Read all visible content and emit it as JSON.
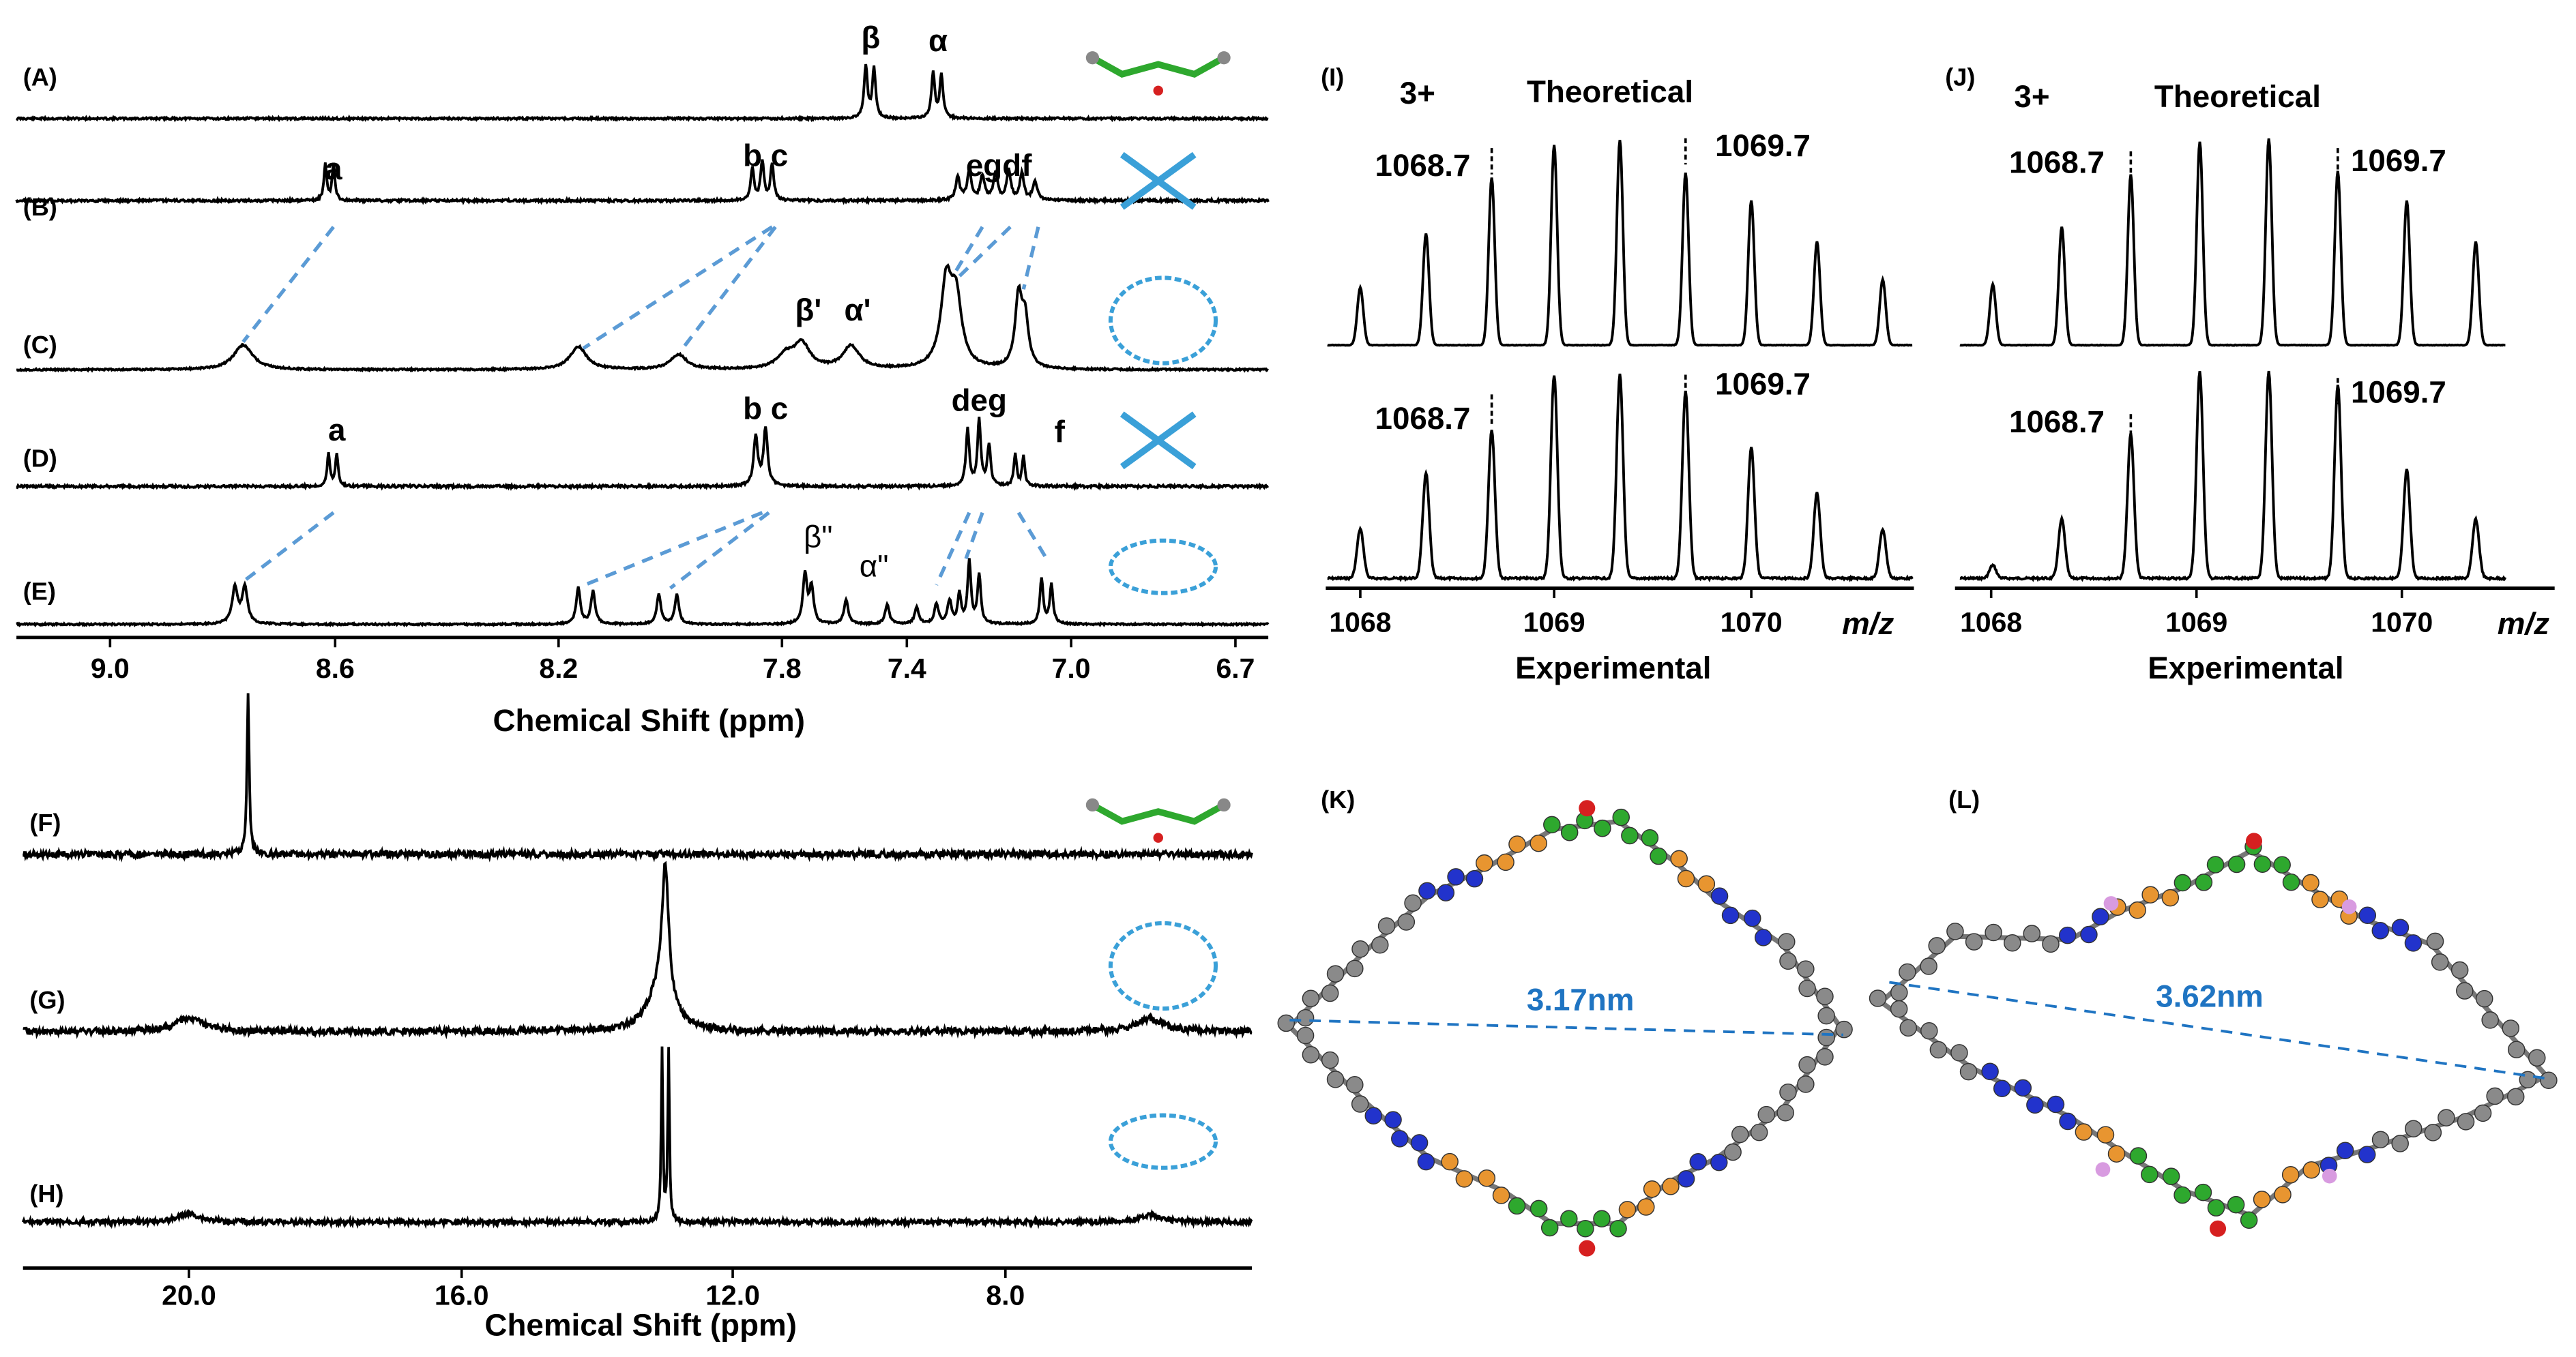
{
  "nmr_top": {
    "panel_labels": [
      "(A)",
      "(B)",
      "(C)",
      "(D)",
      "(E)"
    ],
    "peak_labels": [
      [
        "β",
        "α"
      ],
      [
        "a",
        "b c",
        "egdf"
      ],
      [
        "β'",
        "α'"
      ],
      [
        "a",
        "b c",
        "deg",
        "f"
      ],
      [
        "β\"",
        "α\""
      ]
    ],
    "xticks": [
      "9.0",
      "8.6",
      "8.2",
      "7.8",
      "7.4",
      "7.0",
      "6.7"
    ],
    "xlabel": "Chemical Shift (ppm)"
  },
  "nmr_bottom": {
    "panel_labels": [
      "(F)",
      "(G)",
      "(H)"
    ],
    "xticks": [
      "20.0",
      "16.0",
      "12.0",
      "8.0"
    ],
    "xlabel": "Chemical Shift (ppm)"
  },
  "ms": [
    {
      "panel_label": "(I)",
      "charge": "3+",
      "top_label": "Theoretical",
      "bottom_label": "Experimental",
      "peak_labels": [
        "1068.7",
        "1069.7",
        "1068.7",
        "1069.7"
      ],
      "xticks": [
        "1068",
        "1069",
        "1070"
      ],
      "xunit": "m/z"
    },
    {
      "panel_label": "(J)",
      "charge": "3+",
      "top_label": "Theoretical",
      "bottom_label": "Experimental",
      "peak_labels": [
        "1068.7",
        "1069.7",
        "1068.7",
        "1069.7"
      ],
      "xticks": [
        "1068",
        "1069",
        "1070"
      ],
      "xunit": "m/z"
    }
  ],
  "structures": [
    {
      "panel_label": "(K)",
      "distance": "3.17nm"
    },
    {
      "panel_label": "(L)",
      "distance": "3.62nm"
    }
  ]
}
